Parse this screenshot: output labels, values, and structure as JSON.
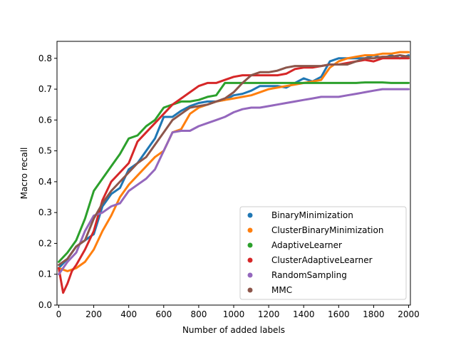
{
  "chart_data": {
    "type": "line",
    "title": "",
    "xlabel": "Number of added labels",
    "ylabel": "Macro recall",
    "xlim": [
      -10,
      2010
    ],
    "ylim": [
      0.0,
      0.855
    ],
    "xticks": [
      0,
      200,
      400,
      600,
      800,
      1000,
      1200,
      1400,
      1600,
      1800,
      2000
    ],
    "yticks": [
      0.0,
      0.1,
      0.2,
      0.3,
      0.4,
      0.5,
      0.6,
      0.7,
      0.8
    ],
    "ytick_labels": [
      "0.0",
      "0.1",
      "0.2",
      "0.3",
      "0.4",
      "0.5",
      "0.6",
      "0.7",
      "0.8"
    ],
    "grid": false,
    "legend_position": "lower-right",
    "series": [
      {
        "name": "BinaryMinimization",
        "color": "#1f77b4",
        "x": [
          0,
          50,
          100,
          150,
          200,
          250,
          300,
          350,
          400,
          450,
          500,
          550,
          600,
          650,
          700,
          750,
          800,
          850,
          900,
          950,
          1000,
          1050,
          1100,
          1150,
          1200,
          1250,
          1300,
          1350,
          1400,
          1450,
          1500,
          1550,
          1600,
          1650,
          1700,
          1750,
          1800,
          1850,
          1900,
          1950,
          2000
        ],
        "y": [
          0.12,
          0.15,
          0.19,
          0.21,
          0.23,
          0.32,
          0.36,
          0.38,
          0.44,
          0.46,
          0.5,
          0.54,
          0.61,
          0.61,
          0.63,
          0.645,
          0.655,
          0.66,
          0.66,
          0.665,
          0.68,
          0.685,
          0.695,
          0.71,
          0.71,
          0.71,
          0.705,
          0.72,
          0.735,
          0.725,
          0.74,
          0.79,
          0.8,
          0.8,
          0.8,
          0.8,
          0.81,
          0.8,
          0.81,
          0.8,
          0.81
        ]
      },
      {
        "name": "ClusterBinaryMinimization",
        "color": "#ff7f0e",
        "x": [
          0,
          50,
          100,
          150,
          200,
          250,
          300,
          350,
          400,
          450,
          500,
          550,
          600,
          650,
          700,
          750,
          800,
          850,
          900,
          950,
          1000,
          1050,
          1100,
          1150,
          1200,
          1250,
          1300,
          1350,
          1400,
          1450,
          1500,
          1550,
          1600,
          1650,
          1700,
          1750,
          1800,
          1850,
          1900,
          1950,
          2000
        ],
        "y": [
          0.12,
          0.11,
          0.12,
          0.14,
          0.18,
          0.24,
          0.29,
          0.35,
          0.39,
          0.42,
          0.45,
          0.48,
          0.5,
          0.56,
          0.57,
          0.62,
          0.64,
          0.65,
          0.66,
          0.665,
          0.67,
          0.675,
          0.68,
          0.69,
          0.7,
          0.705,
          0.71,
          0.715,
          0.72,
          0.725,
          0.73,
          0.77,
          0.79,
          0.8,
          0.805,
          0.81,
          0.81,
          0.815,
          0.815,
          0.82,
          0.82
        ]
      },
      {
        "name": "AdaptiveLearner",
        "color": "#2ca02c",
        "x": [
          0,
          50,
          100,
          150,
          200,
          250,
          300,
          350,
          400,
          450,
          500,
          550,
          600,
          650,
          700,
          750,
          800,
          850,
          900,
          950,
          1000,
          1050,
          1100,
          1150,
          1200,
          1250,
          1300,
          1350,
          1400,
          1450,
          1500,
          1550,
          1600,
          1650,
          1700,
          1750,
          1800,
          1850,
          1900,
          1950,
          2000
        ],
        "y": [
          0.14,
          0.17,
          0.21,
          0.28,
          0.37,
          0.41,
          0.45,
          0.49,
          0.54,
          0.55,
          0.58,
          0.6,
          0.64,
          0.65,
          0.66,
          0.66,
          0.665,
          0.675,
          0.68,
          0.72,
          0.72,
          0.72,
          0.72,
          0.72,
          0.72,
          0.72,
          0.72,
          0.72,
          0.72,
          0.72,
          0.72,
          0.72,
          0.72,
          0.72,
          0.72,
          0.722,
          0.722,
          0.722,
          0.72,
          0.72,
          0.72
        ]
      },
      {
        "name": "ClusterAdaptiveLearner",
        "color": "#d62728",
        "x": [
          0,
          25,
          50,
          75,
          100,
          150,
          200,
          250,
          300,
          350,
          400,
          450,
          500,
          550,
          600,
          650,
          700,
          750,
          800,
          850,
          900,
          950,
          1000,
          1050,
          1100,
          1150,
          1200,
          1250,
          1300,
          1350,
          1400,
          1450,
          1500,
          1550,
          1600,
          1650,
          1700,
          1750,
          1800,
          1850,
          1900,
          1950,
          2000
        ],
        "y": [
          0.12,
          0.04,
          0.07,
          0.11,
          0.13,
          0.18,
          0.24,
          0.34,
          0.4,
          0.43,
          0.46,
          0.53,
          0.56,
          0.59,
          0.62,
          0.65,
          0.67,
          0.69,
          0.71,
          0.72,
          0.72,
          0.73,
          0.74,
          0.745,
          0.745,
          0.745,
          0.745,
          0.745,
          0.75,
          0.765,
          0.77,
          0.77,
          0.775,
          0.78,
          0.78,
          0.785,
          0.79,
          0.795,
          0.79,
          0.8,
          0.8,
          0.8,
          0.8
        ]
      },
      {
        "name": "RandomSampling",
        "color": "#9467bd",
        "x": [
          0,
          50,
          100,
          150,
          200,
          250,
          300,
          350,
          400,
          450,
          500,
          550,
          600,
          650,
          700,
          750,
          800,
          850,
          900,
          950,
          1000,
          1050,
          1100,
          1150,
          1200,
          1250,
          1300,
          1350,
          1400,
          1450,
          1500,
          1550,
          1600,
          1650,
          1700,
          1750,
          1800,
          1850,
          1900,
          1950,
          2000
        ],
        "y": [
          0.1,
          0.14,
          0.17,
          0.24,
          0.29,
          0.3,
          0.32,
          0.33,
          0.37,
          0.39,
          0.41,
          0.44,
          0.5,
          0.56,
          0.565,
          0.565,
          0.58,
          0.59,
          0.6,
          0.61,
          0.625,
          0.635,
          0.64,
          0.64,
          0.645,
          0.65,
          0.655,
          0.66,
          0.665,
          0.67,
          0.675,
          0.675,
          0.675,
          0.68,
          0.685,
          0.69,
          0.695,
          0.7,
          0.7,
          0.7,
          0.7
        ]
      },
      {
        "name": "MMC",
        "color": "#8c564b",
        "x": [
          0,
          50,
          100,
          150,
          200,
          250,
          300,
          350,
          400,
          450,
          500,
          550,
          600,
          650,
          700,
          750,
          800,
          850,
          900,
          950,
          1000,
          1050,
          1100,
          1150,
          1200,
          1250,
          1300,
          1350,
          1400,
          1450,
          1500,
          1550,
          1600,
          1650,
          1700,
          1750,
          1800,
          1850,
          1900,
          1950,
          2000
        ],
        "y": [
          0.13,
          0.15,
          0.19,
          0.21,
          0.28,
          0.33,
          0.37,
          0.4,
          0.43,
          0.46,
          0.48,
          0.52,
          0.56,
          0.6,
          0.62,
          0.64,
          0.645,
          0.65,
          0.66,
          0.67,
          0.69,
          0.72,
          0.745,
          0.755,
          0.755,
          0.76,
          0.77,
          0.775,
          0.775,
          0.775,
          0.775,
          0.78,
          0.78,
          0.78,
          0.79,
          0.8,
          0.8,
          0.805,
          0.805,
          0.81,
          0.805
        ]
      }
    ]
  }
}
